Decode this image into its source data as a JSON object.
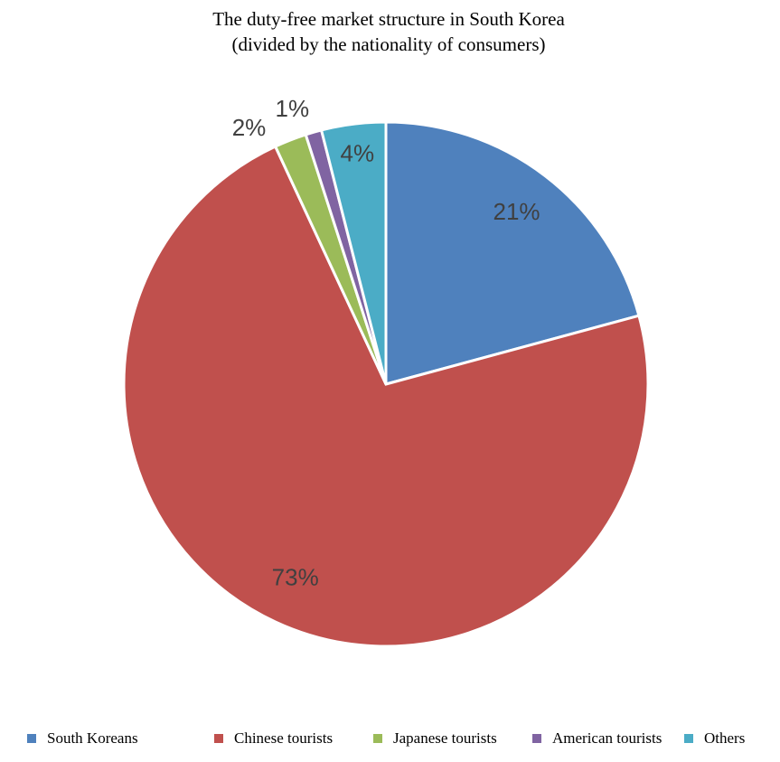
{
  "chart_data": {
    "type": "pie",
    "title": "The duty-free market structure in South Korea",
    "subtitle": "(divided by the nationality of consumers)",
    "categories": [
      "South Koreans",
      "Chinese tourists",
      "Japanese tourists",
      "American tourists",
      "Others"
    ],
    "values": [
      21,
      73,
      2,
      1,
      4
    ],
    "value_labels": [
      "21%",
      "73%",
      "2%",
      "1%",
      "4%"
    ],
    "colors": [
      "#4f81bd",
      "#c0504d",
      "#9bbb59",
      "#8064a2",
      "#4bacc6"
    ],
    "legend": "bottom"
  }
}
